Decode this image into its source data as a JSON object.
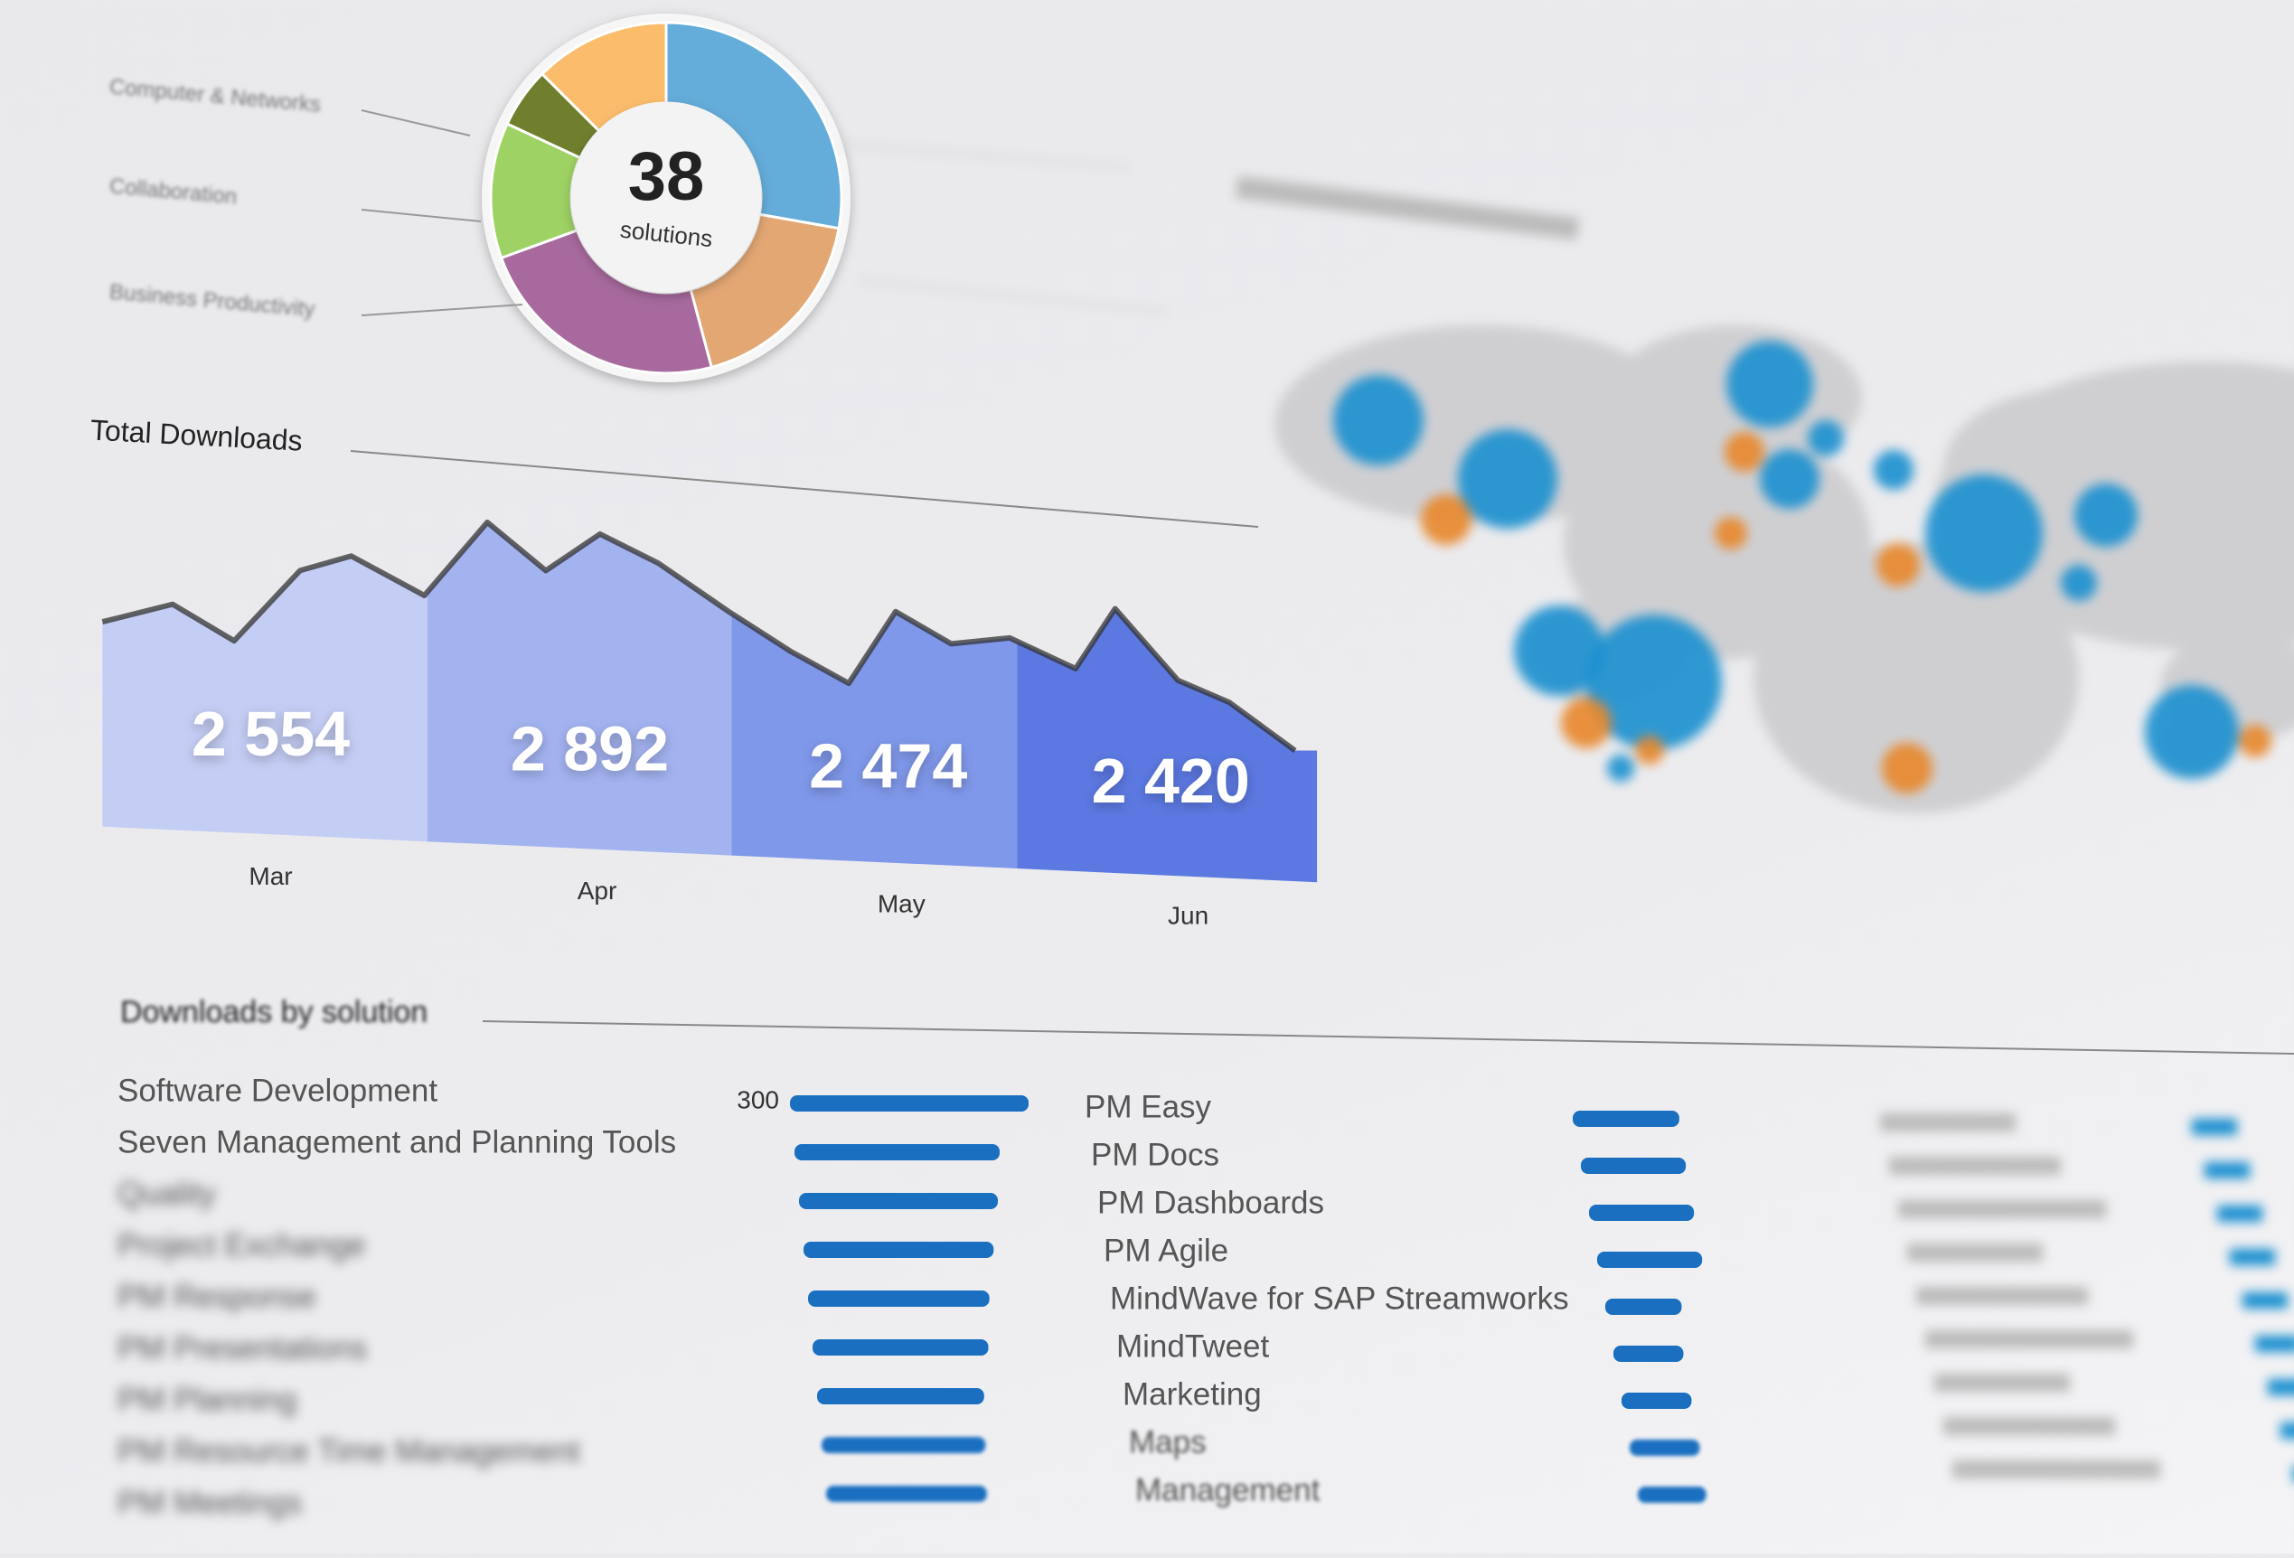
{
  "donut": {
    "center_value": "38",
    "center_label": "solutions",
    "labels": [
      "Computer & Networks",
      "Collaboration",
      "Business Productivity"
    ]
  },
  "total_downloads": {
    "title": "Total Downloads",
    "periods": [
      {
        "month": "Mar",
        "value": "2 554"
      },
      {
        "month": "Apr",
        "value": "2 892"
      },
      {
        "month": "May",
        "value": "2 474"
      },
      {
        "month": "Jun",
        "value": "2 420"
      }
    ]
  },
  "downloads_by_solution": {
    "title": "Downloads by solution",
    "columns": [
      {
        "items": [
          {
            "name": "Software Development",
            "value": 300,
            "value_label": "300"
          },
          {
            "name": "Seven Management and Planning Tools",
            "value": 258
          },
          {
            "name": "Quality",
            "value": 250
          },
          {
            "name": "Project Exchange",
            "value": 239
          },
          {
            "name": "PM Response",
            "value": 228
          },
          {
            "name": "PM Presentations",
            "value": 221
          },
          {
            "name": "PM Planning",
            "value": 210
          },
          {
            "name": "PM Resource Time Management",
            "value": 206
          },
          {
            "name": "PM Meetings",
            "value": 202
          }
        ]
      },
      {
        "items": [
          {
            "name": "PM Easy",
            "value": 134
          },
          {
            "name": "PM Docs",
            "value": 132
          },
          {
            "name": "PM Dashboards",
            "value": 132
          },
          {
            "name": "PM Agile",
            "value": 132
          },
          {
            "name": "MindWave for SAP Streamworks",
            "value": 96
          },
          {
            "name": "MindTweet",
            "value": 88
          },
          {
            "name": "Marketing",
            "value": 88
          },
          {
            "name": "Maps",
            "value": 88
          },
          {
            "name": "Management",
            "value": 86
          }
        ]
      }
    ]
  }
}
